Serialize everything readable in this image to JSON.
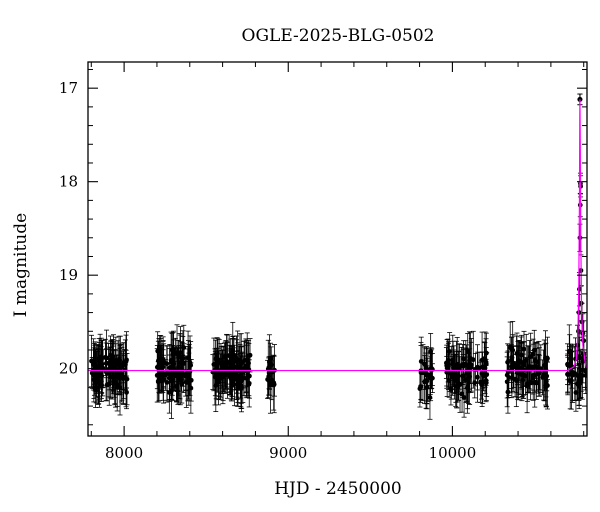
{
  "chart_data": {
    "type": "scatter",
    "title": "OGLE-2025-BLG-0502",
    "xlabel": "HJD - 2450000",
    "ylabel": "I magnitude",
    "xlim": [
      7780,
      10820
    ],
    "ylim": [
      20.72,
      16.72
    ],
    "y_inverted": true,
    "grid": false,
    "x_ticks": [
      8000,
      9000,
      10000
    ],
    "x_tick_labels": [
      "8000",
      "9000",
      "10000"
    ],
    "y_ticks": [
      17,
      18,
      19,
      20
    ],
    "y_tick_labels": [
      "17",
      "18",
      "19",
      "20"
    ],
    "baseline_mag": 20.02,
    "colors": {
      "points": "#000000",
      "model": "#ff00ff",
      "axis": "#000000"
    },
    "observing_seasons": [
      {
        "x_start": 7800,
        "x_end": 8020,
        "n": 95
      },
      {
        "x_start": 8200,
        "x_end": 8410,
        "n": 90
      },
      {
        "x_start": 8540,
        "x_end": 8770,
        "n": 100
      },
      {
        "x_start": 8870,
        "x_end": 8920,
        "n": 14
      },
      {
        "x_start": 9800,
        "x_end": 9880,
        "n": 26
      },
      {
        "x_start": 9960,
        "x_end": 10220,
        "n": 80
      },
      {
        "x_start": 10320,
        "x_end": 10580,
        "n": 80
      },
      {
        "x_start": 10700,
        "x_end": 10820,
        "n": 36
      }
    ],
    "photometry_scatter_mag": 0.17,
    "typical_error_mag": 0.22,
    "event_points": [
      {
        "x": 10776,
        "y": 17.12
      },
      {
        "x": 10778,
        "y": 17.12
      },
      {
        "x": 10780,
        "y": 18.02
      },
      {
        "x": 10781,
        "y": 18.05
      },
      {
        "x": 10779,
        "y": 18.25
      },
      {
        "x": 10777,
        "y": 18.6
      },
      {
        "x": 10783,
        "y": 18.95
      },
      {
        "x": 10774,
        "y": 19.15
      },
      {
        "x": 10785,
        "y": 19.3
      },
      {
        "x": 10771,
        "y": 19.4
      },
      {
        "x": 10790,
        "y": 19.5
      },
      {
        "x": 10768,
        "y": 19.6
      },
      {
        "x": 10795,
        "y": 19.62
      },
      {
        "x": 10762,
        "y": 19.75
      },
      {
        "x": 10800,
        "y": 19.7
      }
    ],
    "model_curve": [
      {
        "x": 7780,
        "y": 20.02
      },
      {
        "x": 10700,
        "y": 20.02
      },
      {
        "x": 10740,
        "y": 19.98
      },
      {
        "x": 10755,
        "y": 19.9
      },
      {
        "x": 10765,
        "y": 19.6
      },
      {
        "x": 10770,
        "y": 19.1
      },
      {
        "x": 10774,
        "y": 18.2
      },
      {
        "x": 10776,
        "y": 17.3
      },
      {
        "x": 10777,
        "y": 17.12
      },
      {
        "x": 10779,
        "y": 17.6
      },
      {
        "x": 10782,
        "y": 18.6
      },
      {
        "x": 10787,
        "y": 19.35
      },
      {
        "x": 10795,
        "y": 19.75
      },
      {
        "x": 10810,
        "y": 19.95
      },
      {
        "x": 10820,
        "y": 20.0
      }
    ]
  }
}
